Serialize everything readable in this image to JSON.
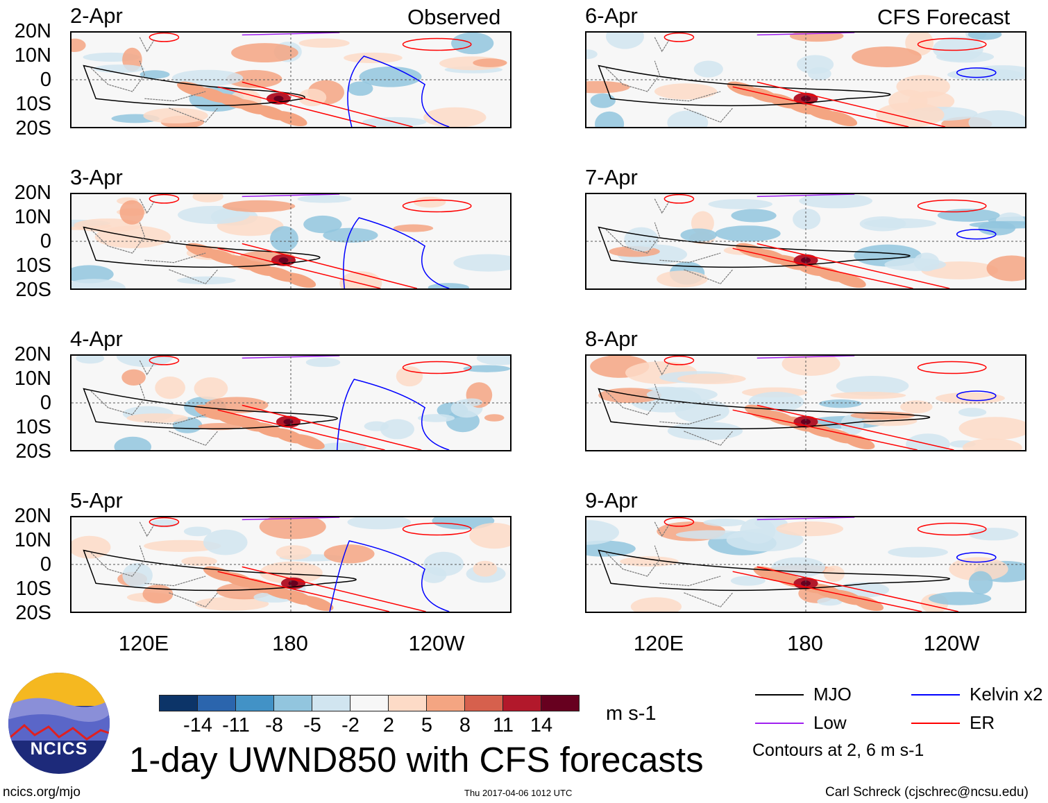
{
  "chart_data": {
    "type": "heatmap",
    "title": "1-day UWND850 with CFS forecasts",
    "variable": "UWND850 anomaly",
    "units": "m s-1",
    "headers": {
      "left": "Observed",
      "right": "CFS Forecast"
    },
    "lat_ticks": [
      "20N",
      "10N",
      "0",
      "10S",
      "20S"
    ],
    "lon_ticks": [
      "120E",
      "180",
      "120W"
    ],
    "lat_range": [
      -20,
      20
    ],
    "lon_range_deg_east": [
      90,
      270
    ],
    "panels": [
      {
        "date": "2-Apr",
        "type": "observed"
      },
      {
        "date": "3-Apr",
        "type": "observed"
      },
      {
        "date": "4-Apr",
        "type": "observed"
      },
      {
        "date": "5-Apr",
        "type": "observed"
      },
      {
        "date": "6-Apr",
        "type": "forecast"
      },
      {
        "date": "7-Apr",
        "type": "forecast"
      },
      {
        "date": "8-Apr",
        "type": "forecast"
      },
      {
        "date": "9-Apr",
        "type": "forecast"
      }
    ],
    "colorbar": {
      "levels": [
        "-14",
        "-11",
        "-8",
        "-5",
        "-2",
        "2",
        "5",
        "8",
        "11",
        "14"
      ],
      "colors": [
        "#0c3468",
        "#2b65ad",
        "#4292c6",
        "#92c5de",
        "#d1e5f0",
        "#f7f7f7",
        "#fddbc7",
        "#f4a582",
        "#d6604d",
        "#b2182b",
        "#67001f"
      ]
    },
    "legend": [
      {
        "label": "MJO",
        "color": "#000000"
      },
      {
        "label": "Kelvin x2",
        "color": "#0000ff"
      },
      {
        "label": "Low",
        "color": "#a020f0"
      },
      {
        "label": "ER",
        "color": "#ff0000"
      }
    ],
    "contour_note": "Contours at 2, 6 m s-1"
  },
  "footer": {
    "logo_text": "NCICS",
    "url": "ncics.org/mjo",
    "timestamp": "Thu 2017-04-06 1012 UTC",
    "credit": "Carl Schreck (cjschrec@ncsu.edu)"
  }
}
